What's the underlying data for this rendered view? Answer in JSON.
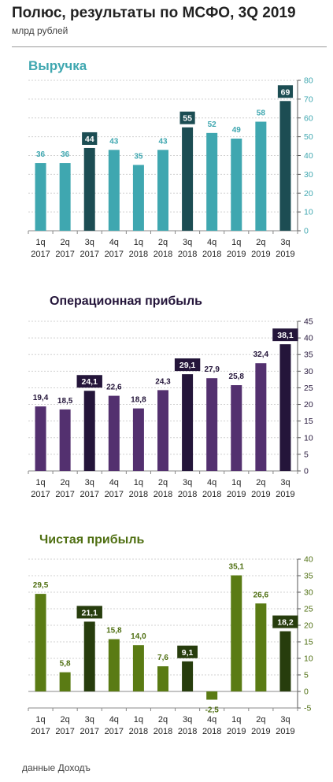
{
  "page": {
    "title": "Полюс, результаты по МСФО, 3Q 2019",
    "subtitle": "млрд рублей",
    "footer": "данные Доходъ"
  },
  "colors": {
    "revenue_bar": "#3fa7b0",
    "revenue_highlight": "#1c4d53",
    "revenue_title": "#3fa7b0",
    "op_bar": "#53306f",
    "op_highlight": "#24153a",
    "op_title": "#24153a",
    "net_bar": "#5a7b14",
    "net_highlight": "#273d0d",
    "net_title": "#4f6f12"
  },
  "chart_data": [
    {
      "type": "bar",
      "title": "Выручка",
      "categories": [
        "1q 2017",
        "2q 2017",
        "3q 2017",
        "4q 2017",
        "1q 2018",
        "2q 2018",
        "3q 2018",
        "4q 2018",
        "1q 2019",
        "2q 2019",
        "3q 2019"
      ],
      "values": [
        36,
        36,
        44,
        43,
        35,
        43,
        55,
        52,
        49,
        58,
        69
      ],
      "value_labels": [
        "36",
        "36",
        "44",
        "43",
        "35",
        "43",
        "55",
        "52",
        "49",
        "58",
        "69"
      ],
      "highlighted": [
        2,
        6,
        10
      ],
      "ylim": [
        0,
        80
      ],
      "yticks": [
        0,
        10,
        20,
        30,
        40,
        50,
        60,
        70,
        80
      ],
      "ytick_labels": [
        "0",
        "10",
        "20",
        "30",
        "40",
        "50",
        "60",
        "70",
        "80"
      ],
      "axis_side": "right",
      "grid": true
    },
    {
      "type": "bar",
      "title": "Операционная прибыль",
      "categories": [
        "1q 2017",
        "2q 2017",
        "3q 2017",
        "4q 2017",
        "1q 2018",
        "2q 2018",
        "3q 2018",
        "4q 2018",
        "1q 2019",
        "2q 2019",
        "3q 2019"
      ],
      "values": [
        19.4,
        18.5,
        24.1,
        22.6,
        18.8,
        24.3,
        29.1,
        27.9,
        25.8,
        32.4,
        38.1
      ],
      "value_labels": [
        "19,4",
        "18,5",
        "24,1",
        "22,6",
        "18,8",
        "24,3",
        "29,1",
        "27,9",
        "25,8",
        "32,4",
        "38,1"
      ],
      "highlighted": [
        2,
        6,
        10
      ],
      "ylim": [
        0,
        45
      ],
      "yticks": [
        0,
        5,
        10,
        15,
        20,
        25,
        30,
        35,
        40,
        45
      ],
      "ytick_labels": [
        "0",
        "5",
        "10",
        "15",
        "20",
        "25",
        "30",
        "35",
        "40",
        "45"
      ],
      "axis_side": "right",
      "grid": true
    },
    {
      "type": "bar",
      "title": "Чистая прибыль",
      "categories": [
        "1q 2017",
        "2q 2017",
        "3q 2017",
        "4q 2017",
        "1q 2018",
        "2q 2018",
        "3q 2018",
        "4q 2018",
        "1q 2019",
        "2q 2019",
        "3q 2019"
      ],
      "values": [
        29.5,
        5.8,
        21.1,
        15.8,
        14.0,
        7.6,
        9.1,
        -2.5,
        35.1,
        26.6,
        18.2
      ],
      "value_labels": [
        "29,5",
        "5,8",
        "21,1",
        "15,8",
        "14,0",
        "7,6",
        "9,1",
        "-2,5",
        "35,1",
        "26,6",
        "18,2"
      ],
      "highlighted": [
        2,
        6,
        10
      ],
      "ylim": [
        -5,
        40
      ],
      "yticks": [
        -5,
        0,
        5,
        10,
        15,
        20,
        25,
        30,
        35,
        40
      ],
      "ytick_labels": [
        "-5",
        "0",
        "5",
        "10",
        "15",
        "20",
        "25",
        "30",
        "35",
        "40"
      ],
      "axis_side": "right",
      "grid": true
    }
  ]
}
